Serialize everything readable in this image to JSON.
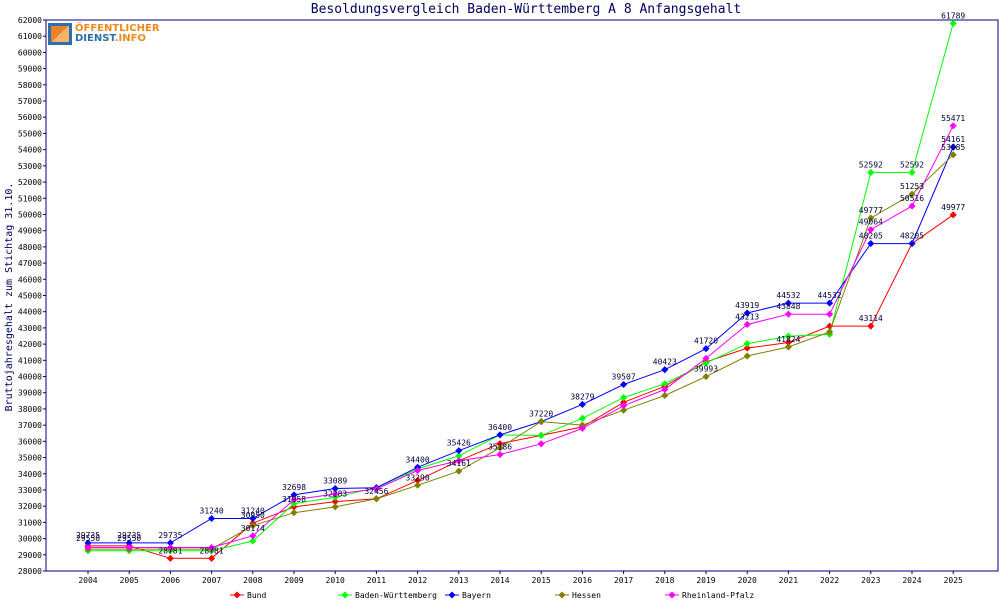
{
  "logo": {
    "line1": "ÖFFENTLICHER",
    "line2a": "DIENST",
    "line2b": ".INFO"
  },
  "chart_data": {
    "type": "line",
    "title": "Besoldungsvergleich Baden-Württemberg A 8 Anfangsgehalt",
    "xlabel": "",
    "ylabel": "Bruttojahresgehalt zum Stichtag 31.10.",
    "ylim": [
      28000,
      62000
    ],
    "ytick_step": 1000,
    "grid": false,
    "legend_position": "bottom",
    "categories": [
      "2004",
      "2005",
      "2006",
      "2007",
      "2008",
      "2009",
      "2010",
      "2011",
      "2012",
      "2013",
      "2014",
      "2015",
      "2016",
      "2017",
      "2018",
      "2019",
      "2020",
      "2021",
      "2022",
      "2023",
      "2024",
      "2025"
    ],
    "series": [
      {
        "name": "Bund",
        "color": "#ff0000",
        "values": [
          29550,
          29550,
          28781,
          28781,
          30950,
          31958,
          32283,
          32456,
          33590,
          34800,
          35860,
          36368,
          36890,
          38410,
          39400,
          40900,
          41755,
          42100,
          43114,
          43114,
          48205,
          49977
        ],
        "labels": [
          true,
          true,
          true,
          true,
          true,
          true,
          true,
          false,
          false,
          false,
          false,
          false,
          false,
          false,
          false,
          false,
          false,
          false,
          false,
          true,
          false,
          true
        ]
      },
      {
        "name": "Baden-Württemberg",
        "color": "#00ff00",
        "values": [
          29250,
          29250,
          29250,
          29250,
          29850,
          32158,
          32550,
          33140,
          34300,
          35100,
          36400,
          36370,
          37420,
          38700,
          39555,
          40830,
          42028,
          42491,
          42600,
          52592,
          52592,
          61789
        ],
        "labels": [
          false,
          false,
          false,
          false,
          false,
          false,
          false,
          false,
          false,
          false,
          false,
          false,
          false,
          false,
          false,
          false,
          false,
          false,
          false,
          true,
          true,
          true
        ]
      },
      {
        "name": "Bayern",
        "color": "#0000ff",
        "values": [
          29735,
          29735,
          29735,
          31240,
          31240,
          32698,
          33089,
          33140,
          34400,
          35426,
          36400,
          37220,
          38279,
          39507,
          40423,
          41720,
          43919,
          44532,
          44532,
          48205,
          48205,
          54161
        ],
        "labels": [
          true,
          true,
          true,
          true,
          true,
          true,
          true,
          false,
          true,
          true,
          true,
          true,
          true,
          true,
          true,
          true,
          true,
          true,
          true,
          true,
          true,
          true
        ]
      },
      {
        "name": "Hessen",
        "color": "#808000",
        "values": [
          29350,
          29350,
          29350,
          29350,
          30800,
          31600,
          31958,
          32456,
          33290,
          34161,
          35600,
          37220,
          37000,
          37920,
          38830,
          39993,
          41265,
          41824,
          42750,
          49777,
          51253,
          53685
        ],
        "labels": [
          false,
          false,
          false,
          false,
          false,
          false,
          false,
          true,
          true,
          true,
          false,
          false,
          false,
          false,
          false,
          true,
          false,
          true,
          false,
          true,
          true,
          true
        ]
      },
      {
        "name": "Rheinland-Pfalz",
        "color": "#ff00ff",
        "values": [
          29450,
          29450,
          29450,
          29450,
          30174,
          32400,
          32750,
          33060,
          34200,
          34800,
          35186,
          35850,
          36800,
          38200,
          39200,
          41118,
          43213,
          43848,
          43848,
          49064,
          50516,
          55471
        ],
        "labels": [
          false,
          false,
          false,
          false,
          true,
          false,
          false,
          false,
          false,
          false,
          true,
          false,
          false,
          false,
          false,
          false,
          true,
          true,
          false,
          true,
          true,
          true
        ]
      }
    ]
  }
}
